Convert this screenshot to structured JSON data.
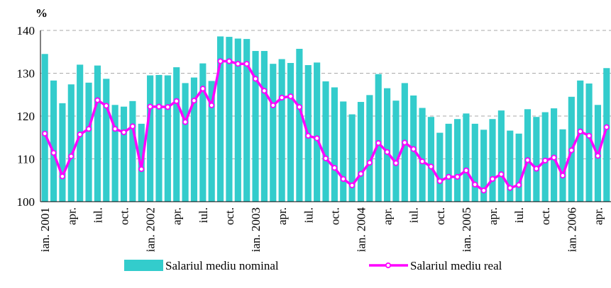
{
  "chart_data": {
    "type": "bar",
    "y_unit": "%",
    "categories": [
      "ian. 2001",
      null,
      null,
      "apr.",
      null,
      null,
      "iul.",
      null,
      null,
      "oct.",
      null,
      null,
      "ian. 2002",
      null,
      null,
      "apr.",
      null,
      null,
      "iul.",
      null,
      null,
      "oct.",
      null,
      null,
      "ian. 2003",
      null,
      null,
      "apr.",
      null,
      null,
      "iul.",
      null,
      null,
      "oct.",
      null,
      null,
      "ian. 2004",
      null,
      null,
      "apr.",
      null,
      null,
      "iul.",
      null,
      null,
      "oct.",
      null,
      null,
      "ian. 2005",
      null,
      null,
      "apr.",
      null,
      null,
      "iul.",
      null,
      null,
      "oct.",
      null,
      null,
      "ian. 2006",
      null,
      null,
      "apr.",
      null
    ],
    "series": [
      {
        "name": "Salariul mediu nominal",
        "type": "bar",
        "color": "#33cccc",
        "values": [
          134.5,
          128.3,
          123,
          127.4,
          132,
          127.8,
          131.8,
          128.7,
          122.6,
          122.2,
          123.5,
          118.2,
          129.5,
          129.6,
          129.5,
          131.4,
          127.7,
          129,
          132.3,
          128.2,
          138.6,
          138.5,
          138.1,
          138,
          135.2,
          135.2,
          132.2,
          133.3,
          132.4,
          135.7,
          131.9,
          132.5,
          128.1,
          126.7,
          123.4,
          120.4,
          123.3,
          124.9,
          129.8,
          126.5,
          123.6,
          127.7,
          124.8,
          121.9,
          119.8,
          116.1,
          118.2,
          119.3,
          120.6,
          118.2,
          116.8,
          119.3,
          121.3,
          116.6,
          115.9,
          121.6,
          119.8,
          120.9,
          121.8,
          116.9,
          124.5,
          128.3,
          127.6,
          122.6,
          131.2
        ]
      },
      {
        "name": "Salariul mediu real",
        "type": "line",
        "color": "#ff00ff",
        "values": [
          115.9,
          111.4,
          105.9,
          110.6,
          115.7,
          117,
          123.7,
          122.4,
          117,
          116.2,
          117.6,
          107.6,
          122.2,
          122.2,
          122.1,
          123.5,
          118.6,
          123.6,
          126.4,
          122.5,
          132.8,
          132.8,
          132.2,
          132.2,
          128.7,
          125.9,
          122.5,
          124.3,
          124.6,
          122.1,
          115.4,
          114.8,
          110.1,
          107.9,
          105.3,
          103.8,
          106.5,
          109.1,
          113.7,
          111.6,
          109,
          113.8,
          112.3,
          109.4,
          108.2,
          104.8,
          105.8,
          105.8,
          107.3,
          104,
          102.6,
          105.3,
          106.4,
          103.2,
          103.9,
          109.7,
          107.7,
          109.6,
          110.3,
          106.1,
          112,
          116.4,
          115.4,
          110.7,
          117.4
        ]
      }
    ],
    "ylim": [
      100,
      140
    ],
    "yticks": [
      100,
      110,
      120,
      130,
      140
    ],
    "grid": true,
    "legend": "bottom"
  }
}
